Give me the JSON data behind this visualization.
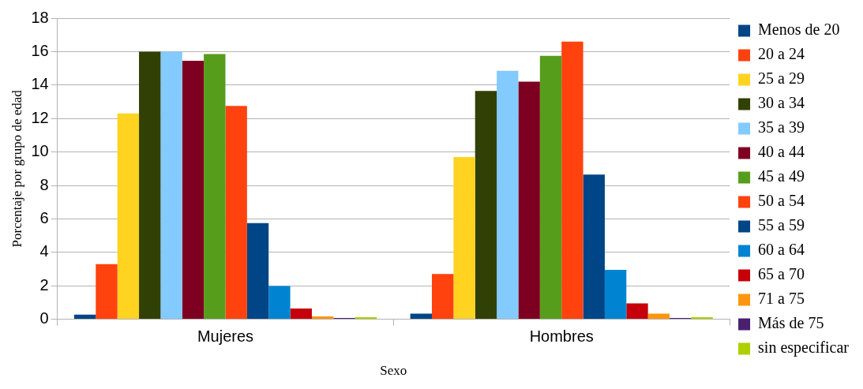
{
  "chart_data": {
    "type": "bar",
    "xlabel": "Sexo",
    "ylabel": "Porcentaje por grupo de edad",
    "categories": [
      "Mujeres",
      "Hombres"
    ],
    "series": [
      {
        "name": "Menos de 20",
        "color": "#004586",
        "values": [
          0.28,
          0.33
        ]
      },
      {
        "name": "20 a 24",
        "color": "#ff420e",
        "values": [
          3.3,
          2.7
        ]
      },
      {
        "name": "25 a 29",
        "color": "#ffd320",
        "values": [
          12.3,
          9.7
        ]
      },
      {
        "name": "30 a 34",
        "color": "#314004",
        "values": [
          16.0,
          13.65
        ]
      },
      {
        "name": "35 a 39",
        "color": "#83caff",
        "values": [
          16.0,
          14.85
        ]
      },
      {
        "name": "40 a 44",
        "color": "#7e0021",
        "values": [
          15.45,
          14.2
        ]
      },
      {
        "name": "45 a 49",
        "color": "#579d1c",
        "values": [
          15.85,
          15.75
        ]
      },
      {
        "name": "50 a 54",
        "color": "#ff420e",
        "values": [
          12.75,
          16.6
        ]
      },
      {
        "name": "55 a 59",
        "color": "#004586",
        "values": [
          5.75,
          8.65
        ]
      },
      {
        "name": "60 a 64",
        "color": "#0084d1",
        "values": [
          1.98,
          2.95
        ]
      },
      {
        "name": "65 a 70",
        "color": "#c5000b",
        "values": [
          0.64,
          0.95
        ]
      },
      {
        "name": "71 a 75",
        "color": "#ff950e",
        "values": [
          0.17,
          0.33
        ]
      },
      {
        "name": "Más de 75",
        "color": "#4b1f6f",
        "values": [
          0.07,
          0.07
        ]
      },
      {
        "name": "sin especificar",
        "color": "#aecf00",
        "values": [
          0.12,
          0.12
        ]
      }
    ],
    "ylim": [
      0,
      18
    ],
    "yticks": [
      0,
      2,
      4,
      6,
      8,
      10,
      12,
      14,
      16,
      18
    ],
    "grid": "y",
    "legend": "right"
  }
}
